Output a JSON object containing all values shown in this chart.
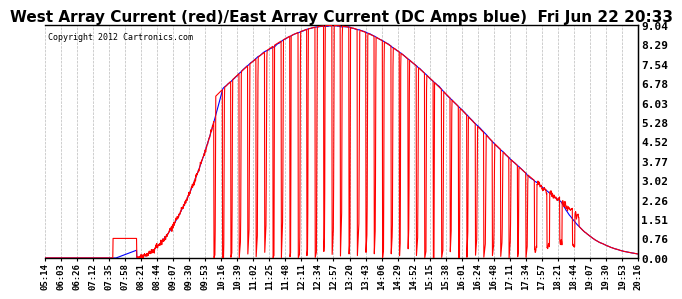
{
  "title": "West Array Current (red)/East Array Current (DC Amps blue)  Fri Jun 22 20:33",
  "copyright": "Copyright 2012 Cartronics.com",
  "yticks": [
    0.0,
    0.76,
    1.51,
    2.26,
    3.02,
    3.77,
    4.52,
    5.28,
    6.03,
    6.78,
    7.54,
    8.29,
    9.04
  ],
  "ymax": 9.04,
  "ymin": 0.0,
  "bg_color": "#ffffff",
  "plot_bg_color": "#ffffff",
  "grid_color": "#bbbbbb",
  "red_color": "#ff0000",
  "blue_color": "#0000ff",
  "title_fontsize": 11,
  "x_labels": [
    "05:14",
    "06:03",
    "06:26",
    "07:12",
    "07:35",
    "07:58",
    "08:21",
    "08:44",
    "09:07",
    "09:30",
    "09:53",
    "10:16",
    "10:39",
    "11:02",
    "11:25",
    "11:48",
    "12:11",
    "12:34",
    "12:57",
    "13:20",
    "13:43",
    "14:06",
    "14:29",
    "14:52",
    "15:15",
    "15:38",
    "16:01",
    "16:24",
    "16:48",
    "17:11",
    "17:34",
    "17:57",
    "18:21",
    "18:44",
    "19:07",
    "19:30",
    "19:53",
    "20:16"
  ]
}
